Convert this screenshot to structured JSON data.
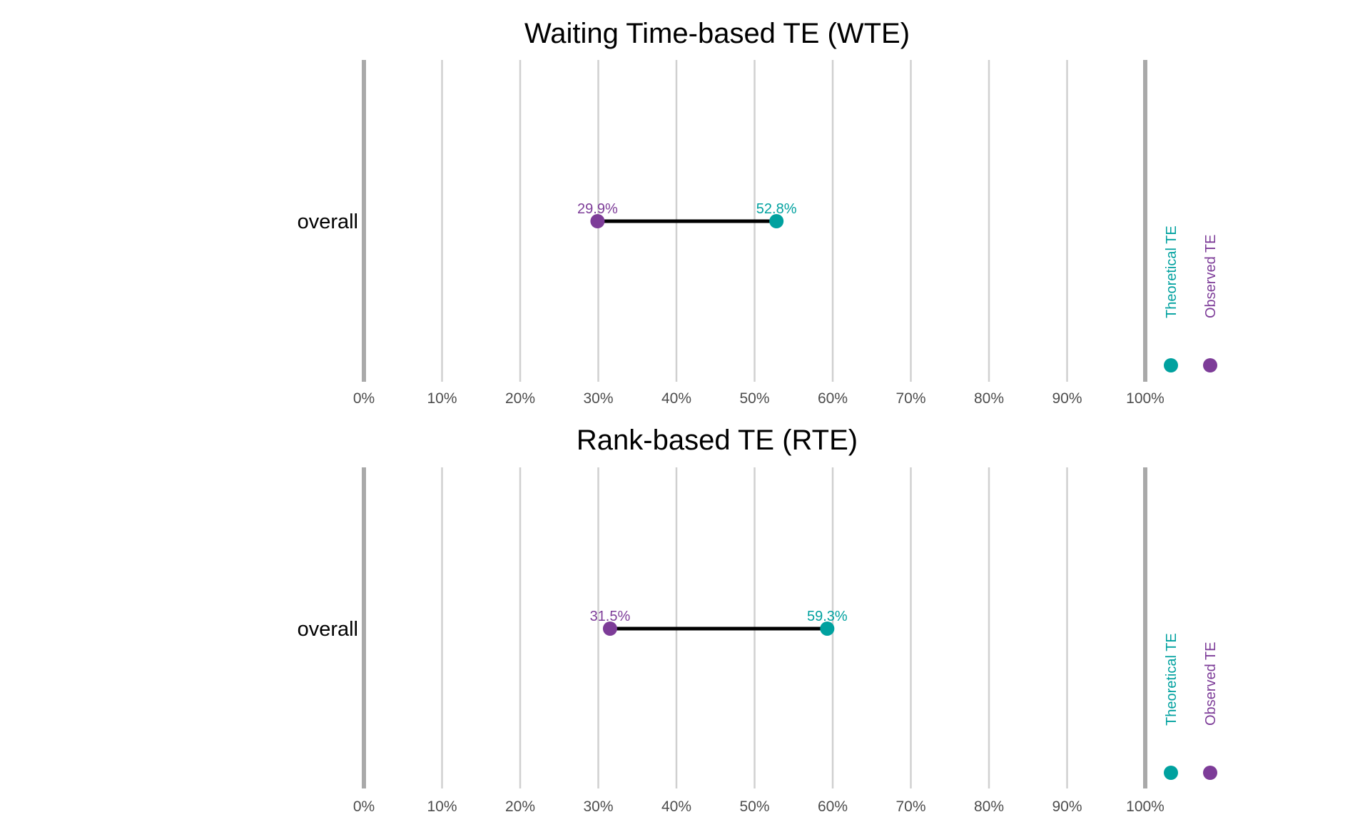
{
  "colors": {
    "theoretical": "#00a19f",
    "observed": "#7d3c98",
    "segment": "#000000",
    "grid": "#d0d0d0",
    "boundary": "#a9a9a9",
    "tick_text": "#4d4d4d"
  },
  "chart_data": [
    {
      "type": "dumbbell",
      "title": "Waiting Time-based TE (WTE)",
      "xlim": [
        0,
        100
      ],
      "x_ticks": [
        0,
        10,
        20,
        30,
        40,
        50,
        60,
        70,
        80,
        90,
        100
      ],
      "x_tick_labels": [
        "0%",
        "10%",
        "20%",
        "30%",
        "40%",
        "50%",
        "60%",
        "70%",
        "80%",
        "90%",
        "100%"
      ],
      "categories": [
        "overall"
      ],
      "series": [
        {
          "name": "Observed TE",
          "values": [
            29.9
          ],
          "labels": [
            "29.9%"
          ],
          "color": "#7d3c98"
        },
        {
          "name": "Theoretical TE",
          "values": [
            52.8
          ],
          "labels": [
            "52.8%"
          ],
          "color": "#00a19f"
        }
      ],
      "legend": {
        "placement": "right",
        "entries": [
          "Theoretical TE",
          "Observed TE"
        ]
      },
      "grid": true
    },
    {
      "type": "dumbbell",
      "title": "Rank-based TE (RTE)",
      "xlim": [
        0,
        100
      ],
      "x_ticks": [
        0,
        10,
        20,
        30,
        40,
        50,
        60,
        70,
        80,
        90,
        100
      ],
      "x_tick_labels": [
        "0%",
        "10%",
        "20%",
        "30%",
        "40%",
        "50%",
        "60%",
        "70%",
        "80%",
        "90%",
        "100%"
      ],
      "categories": [
        "overall"
      ],
      "series": [
        {
          "name": "Observed TE",
          "values": [
            31.5
          ],
          "labels": [
            "31.5%"
          ],
          "color": "#7d3c98"
        },
        {
          "name": "Theoretical TE",
          "values": [
            59.3
          ],
          "labels": [
            "59.3%"
          ],
          "color": "#00a19f"
        }
      ],
      "legend": {
        "placement": "right",
        "entries": [
          "Theoretical TE",
          "Observed TE"
        ]
      },
      "grid": true
    }
  ]
}
